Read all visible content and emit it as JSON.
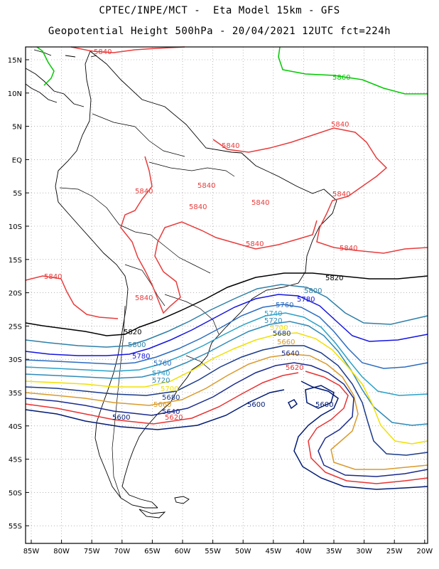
{
  "header": {
    "line1": "CPTEC/INPE/MCT -  Eta Model 15km - GFS",
    "line2": "Geopotential Height 500hPa - 20/04/2021 12UTC fct=224h"
  },
  "axes": {
    "lat_labels": [
      "15N",
      "10N",
      "5N",
      "EQ",
      "5S",
      "10S",
      "15S",
      "20S",
      "25S",
      "30S",
      "35S",
      "40S",
      "45S",
      "50S",
      "55S"
    ],
    "lon_labels": [
      "85W",
      "80W",
      "75W",
      "70W",
      "65W",
      "60W",
      "55W",
      "50W",
      "45W",
      "40W",
      "35W",
      "30W",
      "25W",
      "20W"
    ]
  },
  "colors": {
    "c5600": "#001a73",
    "c5620": "#e83232",
    "c5640": "#1a2a8c",
    "c5660": "#d99a2b",
    "c5680": "#1a3a8a",
    "c5700": "#f0e000",
    "c5720": "#2e8ab8",
    "c5740": "#2aa0c8",
    "c5760": "#2b6cc0",
    "c5780": "#1414e0",
    "c5800": "#2e7fa8",
    "c5820": "#000000",
    "c5840": "#e83c3c",
    "c5860": "#00c800"
  },
  "contour_labels": {
    "5600": "5600",
    "5620": "5620",
    "5640": "5640",
    "5660": "5660",
    "5680": "5680",
    "5700": "5700",
    "5720": "5720",
    "5740": "5740",
    "5760": "5760",
    "5780": "5780",
    "5800": "5800",
    "5820": "5820",
    "5840": "5840",
    "5860": "5860"
  }
}
